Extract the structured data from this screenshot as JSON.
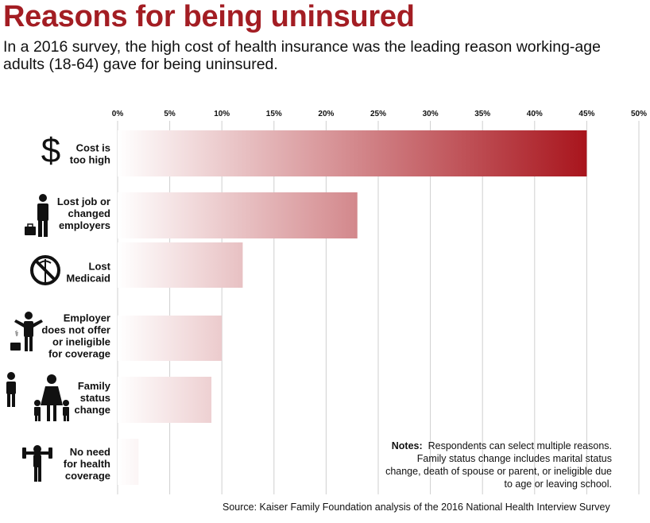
{
  "title": "Reasons for being uninsured",
  "subtitle": "In a 2016 survey, the high cost of health insurance was the leading reason working-age adults (18-64) gave for being uninsured.",
  "notes": {
    "label": "Notes:",
    "text": "Respondents can select multiple reasons. Family status change includes marital status change, death of spouse or parent, or ineligible due to age or leaving school."
  },
  "source": "Source: Kaiser Family Foundation analysis of the 2016 National Health Interview Survey",
  "colors": {
    "title": "#a31d23",
    "bar_end": "#a8141c",
    "bar_start": "#ffffff",
    "grid": "#cfcfcf"
  },
  "chart_data": {
    "type": "bar",
    "orientation": "horizontal",
    "unit": "%",
    "xlim": [
      0,
      50
    ],
    "ticks": [
      "0%",
      "5%",
      "10%",
      "15%",
      "20%",
      "25%",
      "30%",
      "35%",
      "40%",
      "45%",
      "50%"
    ],
    "grid": true,
    "categories": [
      {
        "lines": [
          "Cost is",
          "too high"
        ],
        "icon": "dollar-icon",
        "value": 45
      },
      {
        "lines": [
          "Lost job or",
          "changed",
          "employers"
        ],
        "icon": "person-briefcase-icon",
        "value": 23
      },
      {
        "lines": [
          "Lost",
          "Medicaid"
        ],
        "icon": "no-medicaid-icon",
        "value": 12
      },
      {
        "lines": [
          "Employer",
          "does not offer",
          "or ineligible",
          "for coverage"
        ],
        "icon": "person-shrug-icon",
        "value": 10
      },
      {
        "lines": [
          "Family",
          "status",
          "change"
        ],
        "icon": "family-icon",
        "value": 9
      },
      {
        "lines": [
          "No need",
          "for health",
          "coverage"
        ],
        "icon": "strong-person-icon",
        "value": 2
      }
    ]
  }
}
